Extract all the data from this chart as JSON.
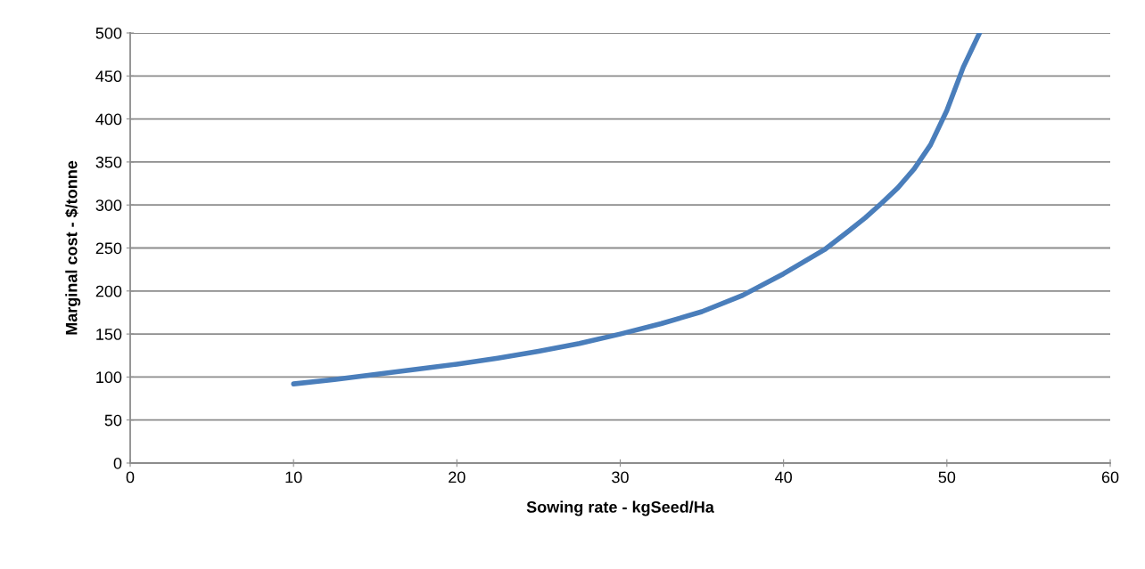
{
  "chart_data": {
    "type": "line",
    "xlabel": "Sowing rate - kgSeed/Ha",
    "ylabel": "Marginal cost - $/tonne",
    "x": [
      10,
      12.5,
      15,
      17.5,
      20,
      22.5,
      25,
      27.5,
      30,
      32.5,
      35,
      37.5,
      40,
      42.5,
      44,
      45,
      46,
      47,
      48,
      49,
      50,
      51,
      52
    ],
    "series": [
      {
        "color": "#4a7ebb",
        "values": [
          92,
          97,
          103,
          109,
          115,
          122,
          130,
          139,
          150,
          162,
          176,
          195,
          220,
          248,
          270,
          285,
          302,
          320,
          342,
          370,
          410,
          460,
          500
        ]
      }
    ],
    "xlim": [
      0,
      60
    ],
    "xticks": [
      0,
      10,
      20,
      30,
      40,
      50,
      60
    ],
    "ylim": [
      0,
      500
    ],
    "yticks": [
      0,
      50,
      100,
      150,
      200,
      250,
      300,
      350,
      400,
      450,
      500
    ],
    "grid": "y",
    "marker": "none",
    "line_style": "solid"
  }
}
